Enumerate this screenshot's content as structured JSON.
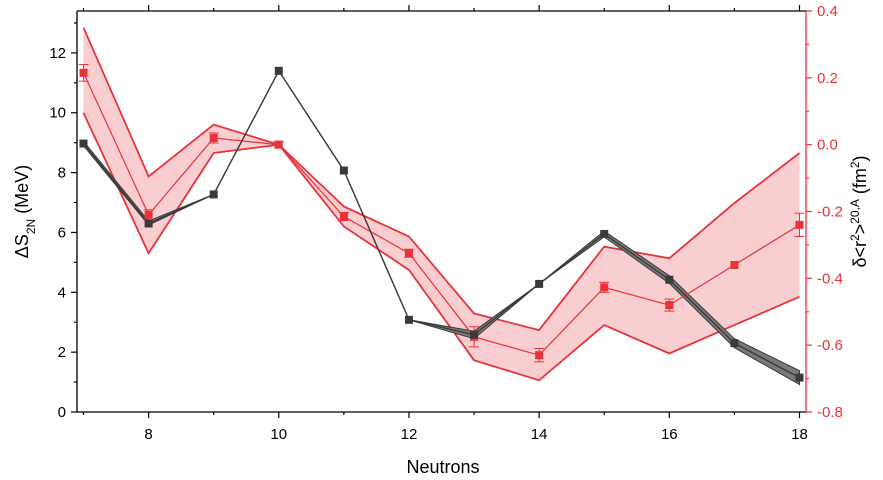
{
  "colors": {
    "gray": "#3a3a3a",
    "red": "#e8333a",
    "red_fill": "#f7c5c8",
    "gray_fill": "#7a7a7a"
  },
  "chart_data": {
    "type": "line",
    "xlabel": "Neutrons",
    "ylabel_left": "ΔS2N (MeV)",
    "ylabel_right": "δ<r2>20,A (fm2)",
    "xlim": [
      6.9,
      18.1
    ],
    "ylim_left": [
      0,
      13.4
    ],
    "ylim_right": [
      -0.8,
      0.4
    ],
    "x_ticks": [
      8,
      10,
      12,
      14,
      16,
      18
    ],
    "y_left_ticks": [
      0,
      2,
      4,
      6,
      8,
      10,
      12
    ],
    "y_right_ticks": [
      -0.8,
      -0.6,
      -0.4,
      -0.2,
      0.0,
      0.2,
      0.4
    ],
    "y_right_tick_labels": [
      "-0.8",
      "-0.6",
      "-0.4",
      "-0.2",
      "0.0",
      "0.2",
      "0.4"
    ],
    "series": [
      {
        "axis": "left",
        "x": [
          7,
          8,
          9,
          10,
          11,
          12,
          13,
          14,
          15,
          16,
          17,
          18
        ],
        "values": [
          8.97,
          6.3,
          7.27,
          11.4,
          8.07,
          3.08,
          2.58,
          4.28,
          5.95,
          4.42,
          2.3,
          1.15
        ],
        "band_upper": [
          9.05,
          6.38,
          7.27,
          11.4,
          8.07,
          3.08,
          2.7,
          4.28,
          6.05,
          4.55,
          2.45,
          1.38
        ],
        "band_lower": [
          8.9,
          6.25,
          7.27,
          11.4,
          8.07,
          3.08,
          2.45,
          4.28,
          5.85,
          4.3,
          2.15,
          0.92
        ]
      },
      {
        "axis": "right",
        "x": [
          7,
          8,
          9,
          10,
          11,
          12,
          13,
          14,
          15,
          16,
          17,
          18
        ],
        "values": [
          0.215,
          -0.21,
          0.02,
          0.0,
          -0.215,
          -0.325,
          -0.575,
          -0.63,
          -0.427,
          -0.48,
          -0.36,
          -0.24
        ],
        "errors": [
          0.025,
          0.015,
          0.015,
          0.01,
          0.012,
          0.012,
          0.03,
          0.02,
          0.015,
          0.018,
          0.0,
          0.035
        ],
        "band_upper": [
          0.35,
          -0.095,
          0.06,
          0.0,
          -0.185,
          -0.275,
          -0.505,
          -0.555,
          -0.305,
          -0.34,
          -0.175,
          -0.025
        ],
        "band_lower": [
          0.095,
          -0.325,
          -0.025,
          0.0,
          -0.245,
          -0.375,
          -0.645,
          -0.705,
          -0.54,
          -0.625,
          -0.54,
          -0.455
        ]
      }
    ]
  }
}
